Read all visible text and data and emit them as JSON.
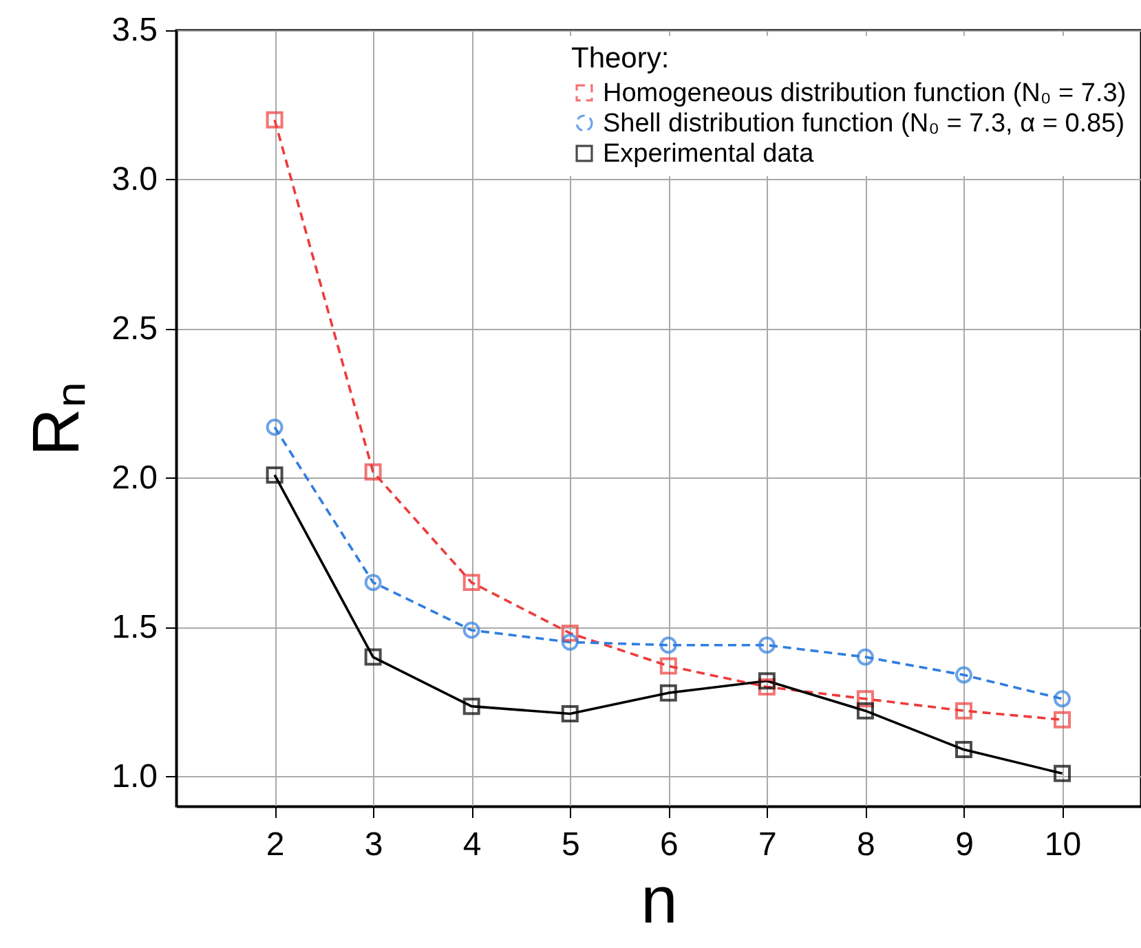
{
  "chart_data": {
    "type": "line",
    "xlabel": "n",
    "ylabel": "Rₙ",
    "legend_title": "Theory:",
    "x": [
      2,
      3,
      4,
      5,
      6,
      7,
      8,
      9,
      10
    ],
    "series": [
      {
        "name": "Homogeneous distribution function (N₀ = 7.3)",
        "color": "#ee3b3b",
        "marker": "square",
        "line_style": "dashed",
        "values": [
          3.2,
          2.02,
          1.65,
          1.48,
          1.37,
          1.3,
          1.26,
          1.22,
          1.19
        ]
      },
      {
        "name": "Shell distribution function (N₀ = 7.3, α = 0.85)",
        "color": "#2f7ee0",
        "marker": "circle",
        "line_style": "dashed",
        "values": [
          2.17,
          1.65,
          1.49,
          1.45,
          1.44,
          1.44,
          1.4,
          1.34,
          1.26
        ]
      },
      {
        "name": "Experimental data",
        "color": "#000000",
        "marker": "square",
        "line_style": "solid",
        "values": [
          2.01,
          1.4,
          1.235,
          1.21,
          1.28,
          1.32,
          1.22,
          1.09,
          1.01
        ]
      }
    ],
    "xlim": [
      1,
      10.8
    ],
    "xticks": [
      2,
      3,
      4,
      5,
      6,
      7,
      8,
      9,
      10
    ],
    "ylim": [
      0.9,
      3.5
    ],
    "yticks": [
      {
        "value": 1,
        "label": "1.0"
      },
      {
        "value": 1.5,
        "label": "1.5"
      },
      {
        "value": 2,
        "label": "2.0"
      },
      {
        "value": 2.5,
        "label": "2.5"
      },
      {
        "value": 3,
        "label": "3.0"
      },
      {
        "value": 3.5,
        "label": "3.5"
      }
    ],
    "grid": true,
    "legend": "top right"
  }
}
